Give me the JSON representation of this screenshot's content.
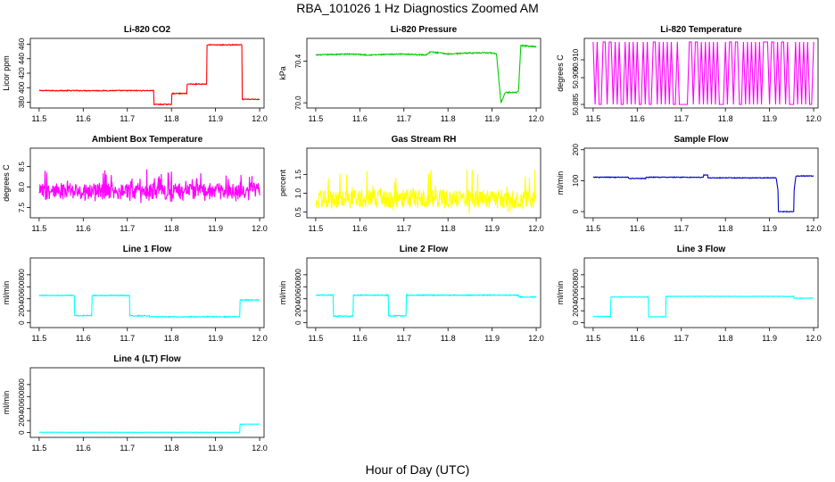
{
  "title": "RBA_101026  1 Hz Diagnostics Zoomed AM",
  "xlabel": "Hour of Day (UTC)",
  "colors": {
    "co2": "#ff0000",
    "pressure": "#00cc00",
    "li_temp": "#ff00ff",
    "box_temp": "#ff00ff",
    "rh": "#ffff00",
    "sample_flow": "#0000cc",
    "line_flow": "#00ffff"
  },
  "chart_data": [
    {
      "type": "line",
      "title": "Li-820 CO2",
      "ylabel": "Licor ppm",
      "color": "#ff0000",
      "xlim": [
        11.48,
        12.01
      ],
      "ylim": [
        372,
        468
      ],
      "xticks": [
        "11.5",
        "11.6",
        "11.7",
        "11.8",
        "11.9",
        "12.0"
      ],
      "xtick_values": [
        11.5,
        11.6,
        11.7,
        11.8,
        11.9,
        12.0
      ],
      "yticks": [
        "380",
        "400",
        "420",
        "440",
        "460"
      ],
      "ytick_values": [
        380,
        400,
        420,
        440,
        460
      ],
      "style": "step",
      "noise": 0.6,
      "x": [
        11.5,
        11.76,
        11.76,
        11.8,
        11.8,
        11.835,
        11.835,
        11.88,
        11.88,
        11.96,
        11.96,
        12.0
      ],
      "y": [
        396,
        396,
        377,
        377,
        392,
        392,
        405,
        405,
        459,
        459,
        384,
        384
      ]
    },
    {
      "type": "line",
      "title": "Li-820 Pressure",
      "ylabel": "kPa",
      "color": "#00cc00",
      "xlim": [
        11.48,
        12.01
      ],
      "ylim": [
        69.95,
        70.62
      ],
      "xticks": [
        "11.5",
        "11.6",
        "11.7",
        "11.8",
        "11.9",
        "12.0"
      ],
      "xtick_values": [
        11.5,
        11.6,
        11.7,
        11.8,
        11.9,
        12.0
      ],
      "yticks": [
        "70.0",
        "70.4"
      ],
      "ytick_values": [
        70.0,
        70.4
      ],
      "style": "step",
      "noise": 0.005,
      "x": [
        11.5,
        11.58,
        11.62,
        11.7,
        11.75,
        11.76,
        11.8,
        11.85,
        11.9,
        11.91,
        11.92,
        11.925,
        11.93,
        11.955,
        11.96,
        11.965,
        11.97,
        12.0
      ],
      "y": [
        70.46,
        70.47,
        70.46,
        70.47,
        70.46,
        70.49,
        70.47,
        70.48,
        70.48,
        70.47,
        70.0,
        70.05,
        70.1,
        70.1,
        70.12,
        70.55,
        70.55,
        70.54
      ]
    },
    {
      "type": "line",
      "title": "Li-820 Temperature",
      "ylabel": "degrees C",
      "color": "#ff00ff",
      "xlim": [
        11.48,
        12.01
      ],
      "ylim": [
        50.883,
        50.922
      ],
      "xticks": [
        "11.5",
        "11.6",
        "11.7",
        "11.8",
        "11.9",
        "12.0"
      ],
      "xtick_values": [
        11.5,
        11.6,
        11.7,
        11.8,
        11.9,
        12.0
      ],
      "yticks": [
        "50.885",
        "50.900",
        "50.910"
      ],
      "ytick_values": [
        50.885,
        50.9,
        50.91
      ],
      "style": "toggle",
      "low": 50.885,
      "high": 50.92,
      "x": [
        11.5,
        12.0
      ],
      "y": [
        50.885,
        50.92
      ]
    },
    {
      "type": "line",
      "title": "Ambient Box Temperature",
      "ylabel": "degrees C",
      "color": "#ff00ff",
      "xlim": [
        11.48,
        12.01
      ],
      "ylim": [
        7.25,
        8.95
      ],
      "xticks": [
        "11.5",
        "11.6",
        "11.7",
        "11.8",
        "11.9",
        "12.0"
      ],
      "xtick_values": [
        11.5,
        11.6,
        11.7,
        11.8,
        11.9,
        12.0
      ],
      "yticks": [
        "7.5",
        "8.0",
        "8.5"
      ],
      "ytick_values": [
        7.5,
        8.0,
        8.5
      ],
      "style": "noise",
      "mean": 7.9,
      "spread": 0.2,
      "spike": 0.85,
      "x": [
        11.5,
        12.0
      ],
      "y": [
        7.3,
        8.9
      ]
    },
    {
      "type": "line",
      "title": "Gas Stream RH",
      "ylabel": "percent",
      "color": "#ffff00",
      "xlim": [
        11.48,
        12.01
      ],
      "ylim": [
        0.35,
        2.2
      ],
      "xticks": [
        "11.5",
        "11.6",
        "11.7",
        "11.8",
        "11.9",
        "12.0"
      ],
      "xtick_values": [
        11.5,
        11.6,
        11.7,
        11.8,
        11.9,
        12.0
      ],
      "yticks": [
        "0.5",
        "1.0",
        "1.5"
      ],
      "ytick_values": [
        0.5,
        1.0,
        1.5
      ],
      "style": "noise",
      "mean": 0.85,
      "spread": 0.25,
      "spike": 1.2,
      "x": [
        11.5,
        12.0
      ],
      "y": [
        0.4,
        2.1
      ]
    },
    {
      "type": "line",
      "title": "Sample Flow",
      "ylabel": "ml/min",
      "color": "#0000cc",
      "xlim": [
        11.48,
        12.01
      ],
      "ylim": [
        -20,
        205
      ],
      "xticks": [
        "11.5",
        "11.6",
        "11.7",
        "11.8",
        "11.9",
        "12.0"
      ],
      "xtick_values": [
        11.5,
        11.6,
        11.7,
        11.8,
        11.9,
        12.0
      ],
      "yticks": [
        "0",
        "100",
        "200"
      ],
      "ytick_values": [
        0,
        100,
        200
      ],
      "style": "step",
      "noise": 1.2,
      "x": [
        11.5,
        11.58,
        11.58,
        11.62,
        11.62,
        11.75,
        11.75,
        11.76,
        11.76,
        11.915,
        11.92,
        11.92,
        11.955,
        11.955,
        11.96,
        11.96,
        12.0
      ],
      "y": [
        111,
        111,
        107,
        107,
        111,
        111,
        118,
        118,
        109,
        109,
        60,
        0,
        0,
        60,
        118,
        115,
        115
      ]
    },
    {
      "type": "line",
      "title": "Line 1 Flow",
      "ylabel": "ml/min",
      "color": "#00ffff",
      "xlim": [
        11.48,
        12.01
      ],
      "ylim": [
        -80,
        1080
      ],
      "xticks": [
        "11.5",
        "11.6",
        "11.7",
        "11.8",
        "11.9",
        "12.0"
      ],
      "xtick_values": [
        11.5,
        11.6,
        11.7,
        11.8,
        11.9,
        12.0
      ],
      "yticks": [
        "0",
        "200",
        "400",
        "600",
        "800"
      ],
      "ytick_values": [
        0,
        200,
        400,
        600,
        800
      ],
      "style": "step",
      "noise": 8,
      "x": [
        11.5,
        11.58,
        11.58,
        11.62,
        11.62,
        11.705,
        11.705,
        11.75,
        11.75,
        11.955,
        11.955,
        12.0
      ],
      "y": [
        455,
        455,
        120,
        120,
        455,
        455,
        115,
        115,
        100,
        100,
        380,
        380
      ]
    },
    {
      "type": "line",
      "title": "Line 2 Flow",
      "ylabel": "ml/min",
      "color": "#00ffff",
      "xlim": [
        11.48,
        12.01
      ],
      "ylim": [
        -80,
        1080
      ],
      "xticks": [
        "11.5",
        "11.6",
        "11.7",
        "11.8",
        "11.9",
        "12.0"
      ],
      "xtick_values": [
        11.5,
        11.6,
        11.7,
        11.8,
        11.9,
        12.0
      ],
      "yticks": [
        "0",
        "200",
        "400",
        "600",
        "800"
      ],
      "ytick_values": [
        0,
        200,
        400,
        600,
        800
      ],
      "style": "step",
      "noise": 8,
      "x": [
        11.5,
        11.54,
        11.54,
        11.585,
        11.585,
        11.665,
        11.665,
        11.705,
        11.705,
        11.96,
        11.96,
        12.0
      ],
      "y": [
        460,
        460,
        110,
        110,
        460,
        460,
        115,
        115,
        460,
        460,
        430,
        430
      ]
    },
    {
      "type": "line",
      "title": "Line 3 Flow",
      "ylabel": "ml/min",
      "color": "#00ffff",
      "xlim": [
        11.48,
        12.01
      ],
      "ylim": [
        -80,
        1080
      ],
      "xticks": [
        "11.5",
        "11.6",
        "11.7",
        "11.8",
        "11.9",
        "12.0"
      ],
      "xtick_values": [
        11.5,
        11.6,
        11.7,
        11.8,
        11.9,
        12.0
      ],
      "yticks": [
        "0",
        "200",
        "400",
        "600",
        "800"
      ],
      "ytick_values": [
        0,
        200,
        400,
        600,
        800
      ],
      "style": "step",
      "noise": 4,
      "x": [
        11.5,
        11.54,
        11.54,
        11.625,
        11.625,
        11.665,
        11.665,
        11.955,
        11.955,
        12.0
      ],
      "y": [
        105,
        105,
        430,
        430,
        100,
        100,
        440,
        440,
        410,
        410
      ]
    },
    {
      "type": "line",
      "title": "Line 4 (LT) Flow",
      "ylabel": "ml/min",
      "color": "#00ffff",
      "xlim": [
        11.48,
        12.01
      ],
      "ylim": [
        -80,
        1080
      ],
      "xticks": [
        "11.5",
        "11.6",
        "11.7",
        "11.8",
        "11.9",
        "12.0"
      ],
      "xtick_values": [
        11.5,
        11.6,
        11.7,
        11.8,
        11.9,
        12.0
      ],
      "yticks": [
        "0",
        "200",
        "400",
        "600",
        "800"
      ],
      "ytick_values": [
        0,
        200,
        400,
        600,
        800
      ],
      "style": "step",
      "noise": 2,
      "x": [
        11.5,
        11.955,
        11.955,
        12.0
      ],
      "y": [
        5,
        5,
        140,
        140
      ]
    }
  ]
}
